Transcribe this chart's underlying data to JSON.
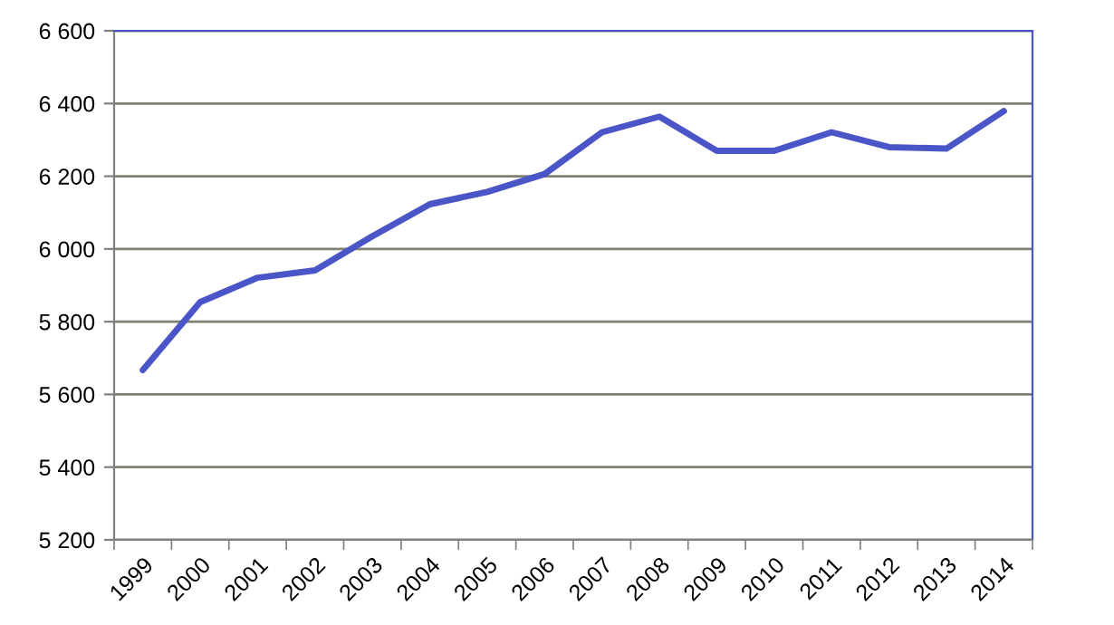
{
  "chart_data": {
    "type": "line",
    "categories": [
      "1999",
      "2000",
      "2001",
      "2002",
      "2003",
      "2004",
      "2005",
      "2006",
      "2007",
      "2008",
      "2009",
      "2010",
      "2011",
      "2012",
      "2013",
      "2014"
    ],
    "series": [
      {
        "color": "#4a55c8",
        "values": [
          5667,
          5854,
          5921,
          5941,
          6035,
          6123,
          6157,
          6206,
          6321,
          6364,
          6270,
          6270,
          6321,
          6280,
          6276,
          6379
        ]
      }
    ],
    "ylim": [
      5200,
      6600
    ],
    "yticks": [
      {
        "value": 5200,
        "label": "5 200"
      },
      {
        "value": 5400,
        "label": "5 400"
      },
      {
        "value": 5600,
        "label": "5 600"
      },
      {
        "value": 5800,
        "label": "5 800"
      },
      {
        "value": 6000,
        "label": "6 000"
      },
      {
        "value": 6200,
        "label": "6 200"
      },
      {
        "value": 6400,
        "label": "6 400"
      },
      {
        "value": 6600,
        "label": "6 600"
      }
    ],
    "grid": "y",
    "legend": false,
    "marker": "none",
    "line_style": "solid"
  }
}
